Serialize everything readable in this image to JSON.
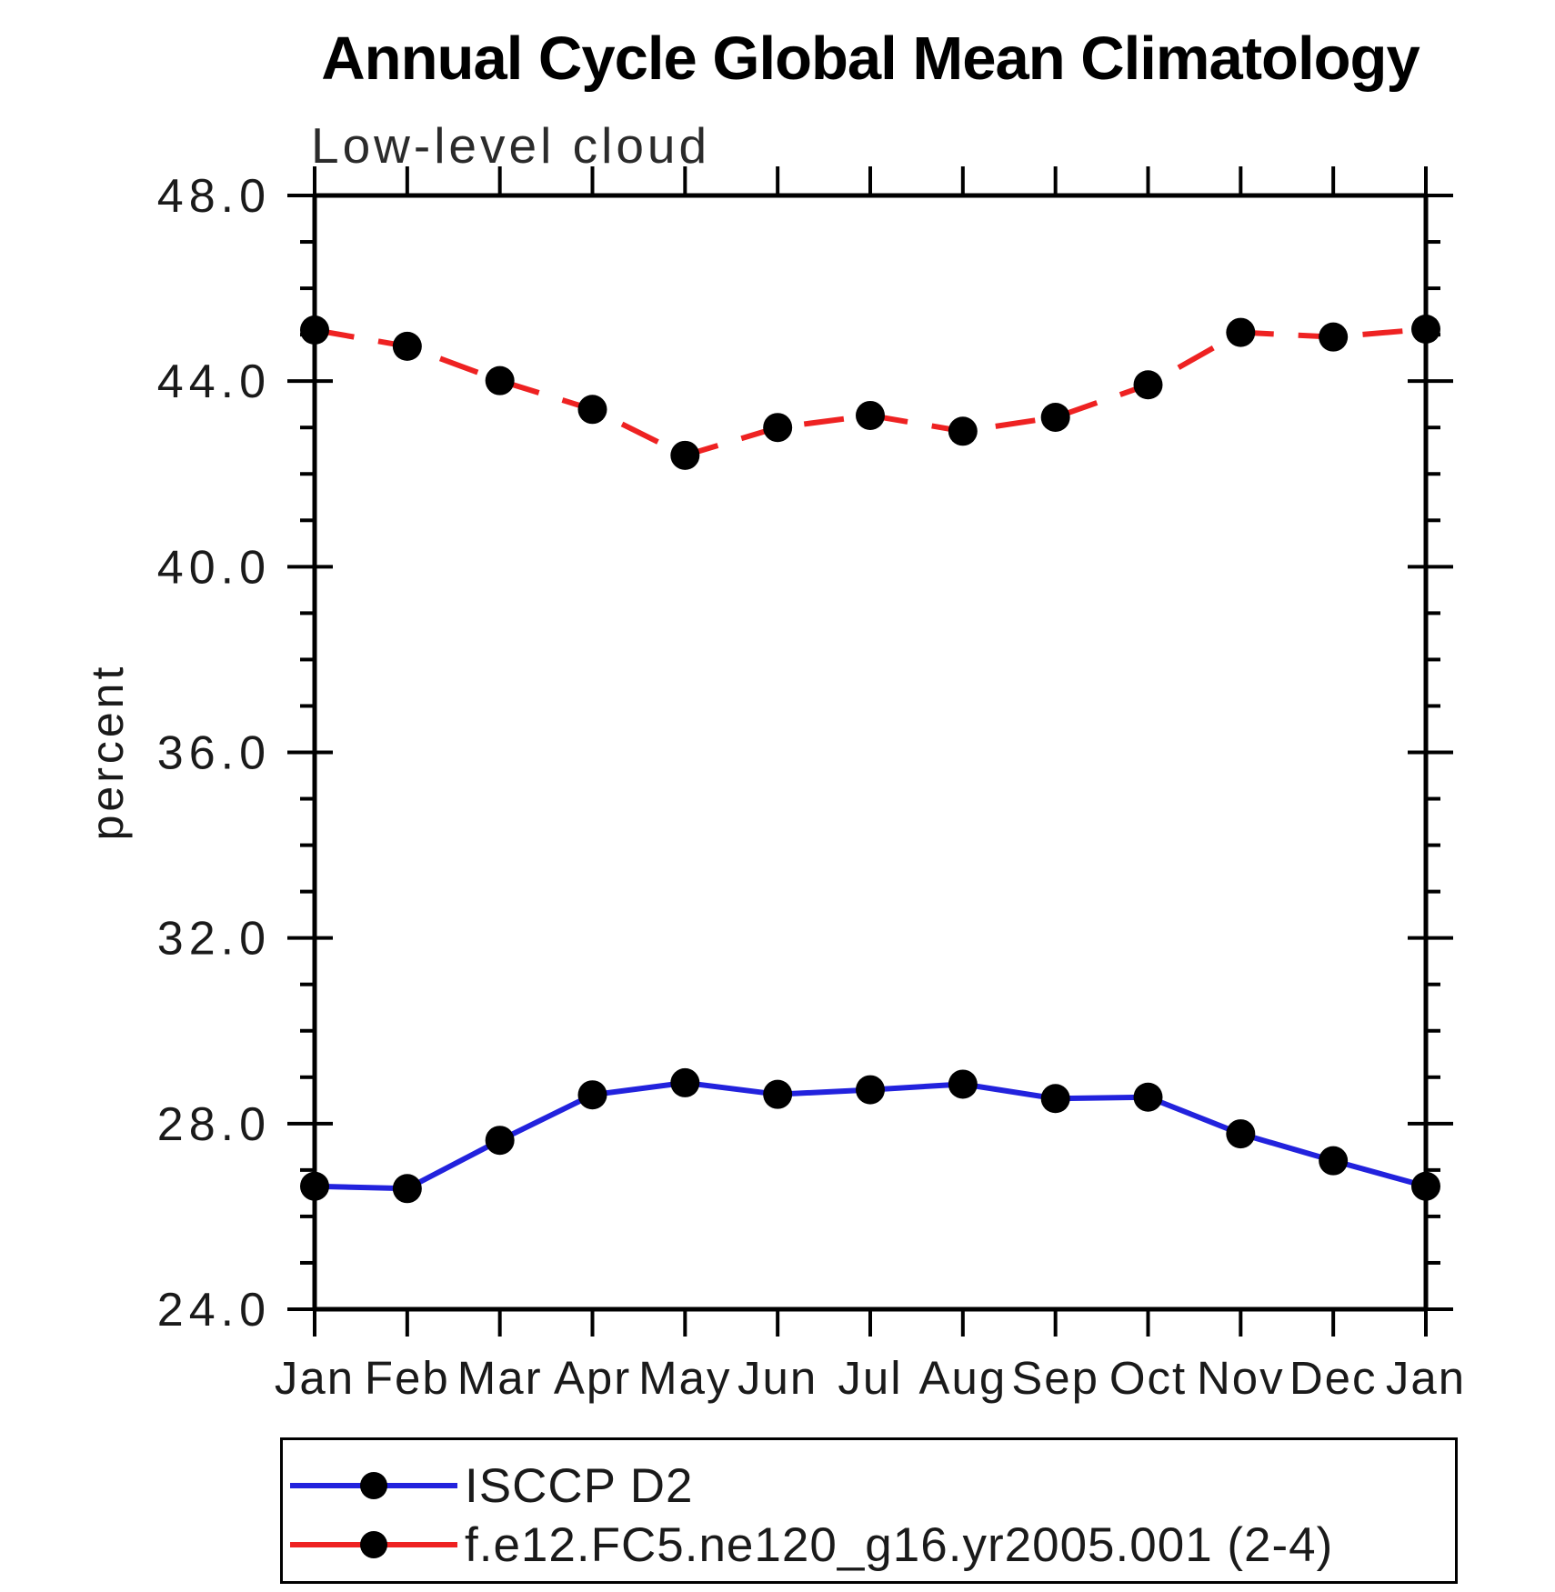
{
  "chart_data": {
    "type": "line",
    "title": "Annual Cycle Global Mean Climatology",
    "subtitle": "Low-level cloud",
    "ylabel": "percent",
    "x_categories": [
      "Jan",
      "Feb",
      "Mar",
      "Apr",
      "May",
      "Jun",
      "Jul",
      "Aug",
      "Sep",
      "Oct",
      "Nov",
      "Dec",
      "Jan"
    ],
    "ylim": [
      24.0,
      48.0
    ],
    "y_major_tick_interval": 4.0,
    "y_minor_tick_interval": 1.0,
    "y_tick_labels": [
      "48.0",
      "44.0",
      "40.0",
      "36.0",
      "32.0",
      "28.0",
      "24.0"
    ],
    "grid": false,
    "axis_color": "#000000",
    "legend_position": "bottom",
    "series": [
      {
        "name": "ISCCP D2",
        "color": "#2222dd",
        "line_style": "solid",
        "marker": "filled-circle",
        "marker_color": "#000000",
        "values": [
          26.65,
          26.6,
          27.64,
          28.62,
          28.88,
          28.63,
          28.73,
          28.85,
          28.54,
          28.57,
          27.78,
          27.2,
          26.65
        ]
      },
      {
        "name": "f.e12.FC5.ne120_g16.yr2005.001 (2-4)",
        "color": "#ee2222",
        "line_style": "dashed",
        "marker": "filled-circle",
        "marker_color": "#000000",
        "values": [
          45.1,
          44.75,
          44.01,
          43.39,
          42.4,
          43.0,
          43.26,
          42.92,
          43.22,
          43.92,
          45.05,
          44.95,
          45.12
        ]
      }
    ]
  }
}
